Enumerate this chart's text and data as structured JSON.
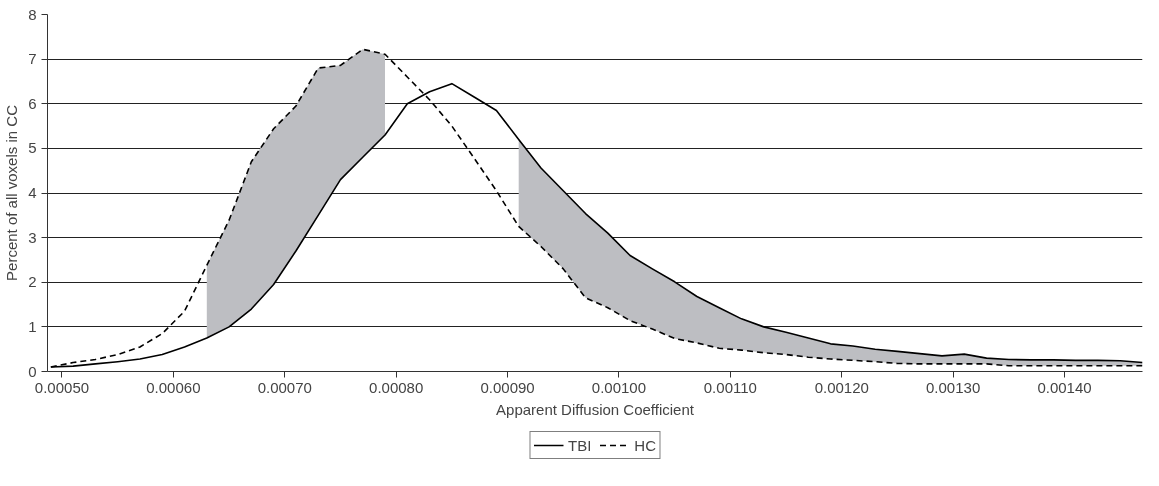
{
  "chart_data": {
    "type": "line",
    "xlabel": "Apparent Diffusion Coefficient",
    "ylabel": "Percent of all voxels in CC",
    "x": [
      0.00049,
      0.00051,
      0.00053,
      0.00055,
      0.00057,
      0.00059,
      0.00061,
      0.00063,
      0.00065,
      0.00067,
      0.00069,
      0.00071,
      0.00073,
      0.00075,
      0.00077,
      0.00079,
      0.00081,
      0.00083,
      0.00085,
      0.00087,
      0.00089,
      0.00091,
      0.00093,
      0.00095,
      0.00097,
      0.00099,
      0.00101,
      0.00103,
      0.00105,
      0.00107,
      0.00109,
      0.00111,
      0.00113,
      0.00115,
      0.00117,
      0.00119,
      0.00121,
      0.00123,
      0.00125,
      0.00127,
      0.00129,
      0.00131,
      0.00133,
      0.00135,
      0.00137,
      0.00139,
      0.00141,
      0.00143,
      0.00145,
      0.00147
    ],
    "series": [
      {
        "name": "TBI",
        "color": "#000000",
        "line_style": "solid",
        "values": [
          0.1,
          0.12,
          0.17,
          0.22,
          0.28,
          0.38,
          0.55,
          0.75,
          1.0,
          1.4,
          1.95,
          2.7,
          3.5,
          4.3,
          4.8,
          5.3,
          6.0,
          6.27,
          6.45,
          6.15,
          5.85,
          5.2,
          4.56,
          4.05,
          3.54,
          3.1,
          2.6,
          2.3,
          2.01,
          1.68,
          1.43,
          1.18,
          1.0,
          0.88,
          0.75,
          0.62,
          0.57,
          0.5,
          0.45,
          0.4,
          0.35,
          0.39,
          0.3,
          0.27,
          0.26,
          0.26,
          0.25,
          0.25,
          0.24,
          0.2
        ],
        "lower": [
          null,
          null,
          null,
          null,
          null,
          null,
          null,
          0.75,
          1.0,
          1.4,
          1.95,
          2.7,
          3.5,
          4.3,
          4.8,
          5.3,
          null,
          null,
          null,
          null,
          null,
          3.25,
          2.8,
          2.3,
          1.65,
          1.43,
          1.14,
          0.95,
          0.74,
          0.64,
          0.52,
          0.48,
          0.42,
          0.38,
          0.32,
          0.28,
          0.25,
          0.22,
          0.18,
          0.17,
          0.17,
          0.17,
          0.17,
          0.13,
          0.13,
          0.13,
          0.13,
          0.13,
          0.13,
          0.13
        ],
        "upper": [
          null,
          null,
          null,
          null,
          null,
          null,
          null,
          2.38,
          3.39,
          4.7,
          5.44,
          5.95,
          6.8,
          6.86,
          7.22,
          7.11,
          null,
          null,
          null,
          null,
          null,
          5.2,
          4.56,
          4.05,
          3.54,
          3.1,
          2.6,
          2.3,
          2.01,
          1.68,
          1.43,
          1.18,
          1.0,
          0.88,
          0.75,
          0.62,
          0.57,
          0.5,
          0.45,
          0.4,
          0.35,
          0.39,
          0.3,
          0.27,
          0.26,
          0.26,
          0.25,
          0.25,
          0.24,
          0.2
        ]
      },
      {
        "name": "HC",
        "color": "#000000",
        "line_style": "dashed",
        "values": [
          0.1,
          0.2,
          0.27,
          0.38,
          0.55,
          0.85,
          1.35,
          2.38,
          3.39,
          4.7,
          5.44,
          5.95,
          6.8,
          6.86,
          7.22,
          7.11,
          6.6,
          6.09,
          5.5,
          4.78,
          4.05,
          3.25,
          2.8,
          2.3,
          1.65,
          1.43,
          1.14,
          0.95,
          0.74,
          0.64,
          0.52,
          0.48,
          0.42,
          0.38,
          0.32,
          0.28,
          0.25,
          0.22,
          0.18,
          0.17,
          0.17,
          0.17,
          0.17,
          0.13,
          0.13,
          0.13,
          0.13,
          0.13,
          0.13,
          0.13
        ]
      }
    ],
    "xlim": [
      0.000487,
      0.00147
    ],
    "ylim": [
      0,
      8
    ],
    "yticks": [
      0,
      1,
      2,
      3,
      4,
      5,
      6,
      7,
      8
    ],
    "xticks": [
      {
        "value": 0.0005,
        "label": "0.00050"
      },
      {
        "value": 0.0006,
        "label": "0.00060"
      },
      {
        "value": 0.0007,
        "label": "0.00070"
      },
      {
        "value": 0.0008,
        "label": "0.00080"
      },
      {
        "value": 0.0009,
        "label": "0.00090"
      },
      {
        "value": 0.001,
        "label": "0.00100"
      },
      {
        "value": 0.0011,
        "label": "0.00110"
      },
      {
        "value": 0.0012,
        "label": "0.00120"
      },
      {
        "value": 0.0013,
        "label": "0.00130"
      },
      {
        "value": 0.0014,
        "label": "0.00140"
      }
    ],
    "grid": "y",
    "legend": "bottom",
    "marker": "none"
  }
}
